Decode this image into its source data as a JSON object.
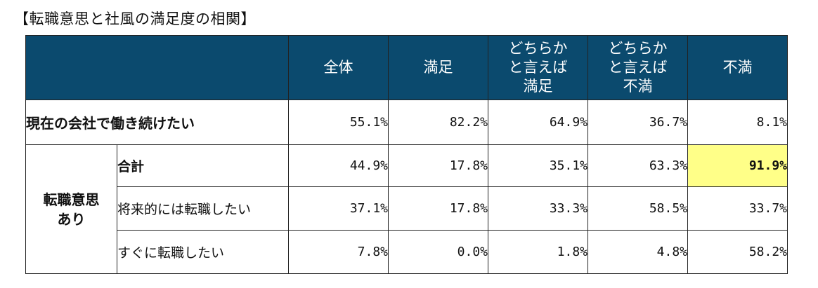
{
  "title": "【転職意思と社風の満足度の相関】",
  "chart_data": {
    "type": "table",
    "columns": [
      "全体",
      "満足",
      "どちらか と言えば 満足",
      "どちらか と言えば 不満",
      "不満"
    ],
    "header": {
      "c1": "全体",
      "c2": "満足",
      "c3_l1": "どちらか",
      "c3_l2": "と言えば",
      "c3_l3": "満足",
      "c4_l1": "どちらか",
      "c4_l2": "と言えば",
      "c4_l3": "不満",
      "c5": "不満"
    },
    "rows": [
      {
        "label": "現在の会社で働き続けたい",
        "values": [
          "55.1%",
          "82.2%",
          "64.9%",
          "36.7%",
          "8.1%"
        ]
      },
      {
        "group": "転職意思あり",
        "group_l1": "転職意思",
        "group_l2": "あり",
        "label": "合計",
        "values": [
          "44.9%",
          "17.8%",
          "35.1%",
          "63.3%",
          "91.9%"
        ],
        "highlight_col": 5
      },
      {
        "group": "転職意思あり",
        "label": "将来的には転職したい",
        "values": [
          "37.1%",
          "17.8%",
          "33.3%",
          "58.5%",
          "33.7%"
        ]
      },
      {
        "group": "転職意思あり",
        "label": "すぐに転職したい",
        "values": [
          "7.8%",
          "0.0%",
          "1.8%",
          "4.8%",
          "58.2%"
        ]
      }
    ],
    "colors": {
      "header_bg": "#0b4a6e",
      "header_text": "#ffffff",
      "highlight": "#ffff88"
    }
  }
}
